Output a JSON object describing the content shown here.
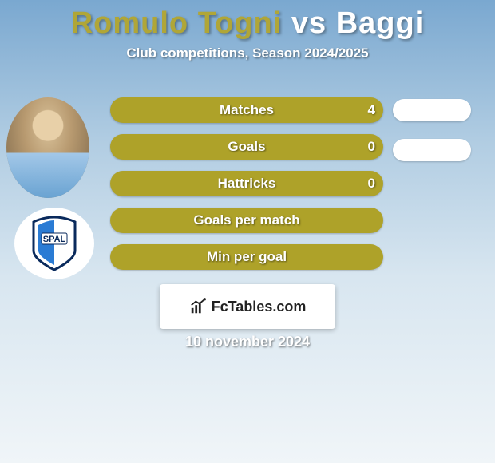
{
  "title": {
    "player1": "Romulo Togni",
    "vs": "vs",
    "player2": "Baggi",
    "player1_color": "#b0a637",
    "vs_color": "#ffffff",
    "player2_color": "#ffffff",
    "fontsize": 38
  },
  "subtitle": "Club competitions, Season 2024/2025",
  "bars": {
    "fill_color": "#aea229",
    "text_color": "#ffffff",
    "label_fontsize": 17,
    "rows": [
      {
        "label": "Matches",
        "value_left": "4",
        "has_right_pill": true
      },
      {
        "label": "Goals",
        "value_left": "0",
        "has_right_pill": true
      },
      {
        "label": "Hattricks",
        "value_left": "0",
        "has_right_pill": false
      },
      {
        "label": "Goals per match",
        "value_left": "",
        "has_right_pill": false
      },
      {
        "label": "Min per goal",
        "value_left": "",
        "has_right_pill": false
      }
    ]
  },
  "pill_color": "#ffffff",
  "avatars": {
    "player1_logo": "photo",
    "player2_logo": "SPAL"
  },
  "branding": "FcTables.com",
  "date": "10 november 2024",
  "background_gradient": [
    "#7aa8d0",
    "#b0cce2",
    "#d8e6f0",
    "#f0f5f8"
  ]
}
